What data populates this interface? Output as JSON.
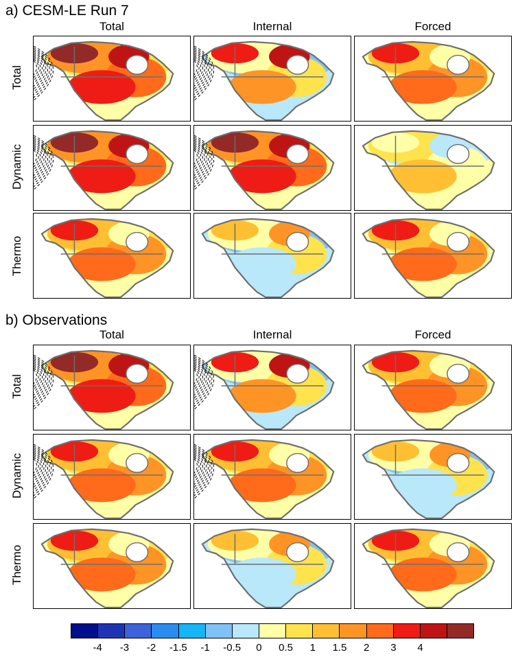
{
  "sections": [
    {
      "title": "a) CESM-LE Run 7"
    },
    {
      "title": "b) Observations"
    }
  ],
  "columns": [
    "Total",
    "Internal",
    "Forced"
  ],
  "rows": [
    "Total",
    "Dynamic",
    "Thermo"
  ],
  "colorbar": {
    "colors": [
      "#000f8c",
      "#1f34b5",
      "#3d62d9",
      "#2a8cf0",
      "#16b5f5",
      "#80c2f5",
      "#b8e8fa",
      "#ffffa8",
      "#ffe34d",
      "#ffbf33",
      "#ff9426",
      "#ff6b1a",
      "#ee1c14",
      "#bf1414",
      "#932a28"
    ],
    "labels": [
      "-4",
      "-3",
      "-2",
      "-1.5",
      "-1",
      "-0.5",
      "0",
      "0.5",
      "1",
      "1.5",
      "2",
      "3",
      "4"
    ]
  }
}
